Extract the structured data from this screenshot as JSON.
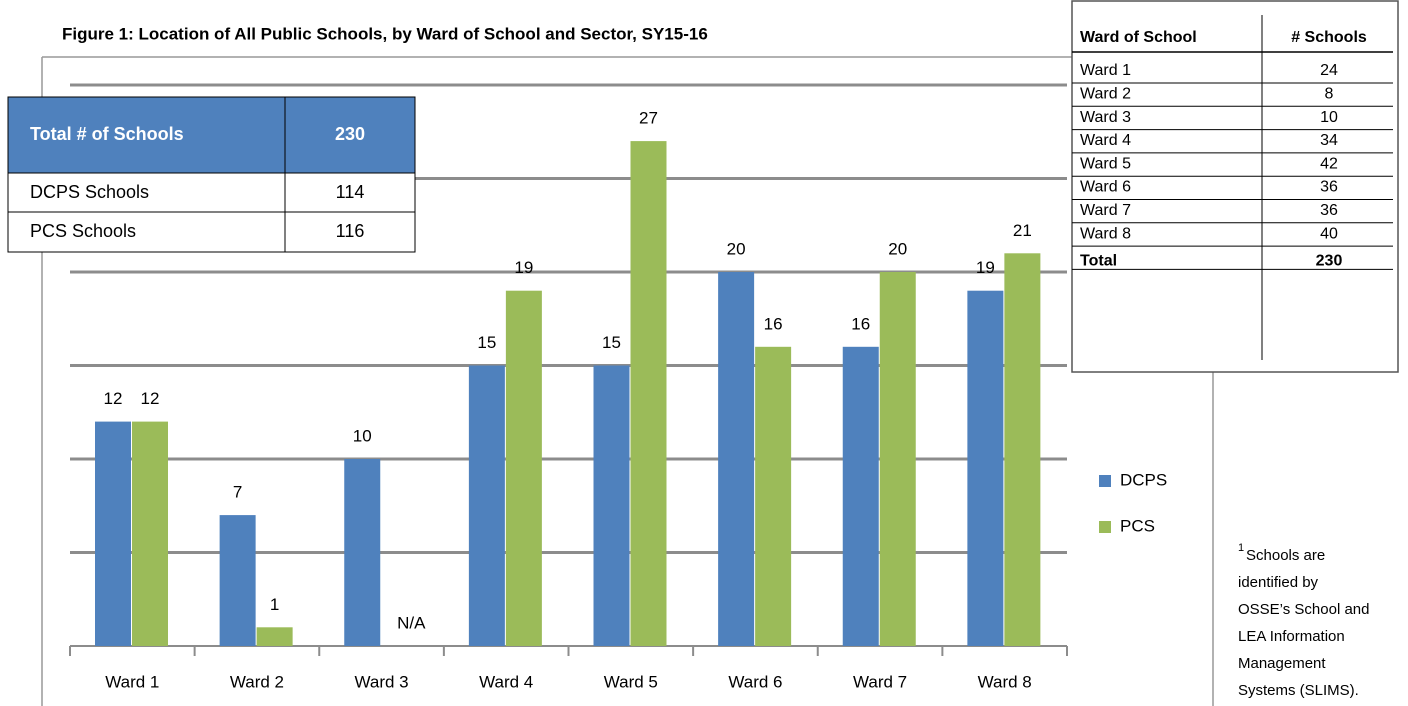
{
  "chart_data": {
    "type": "bar",
    "title": "Figure 1: Location of All Public Schools, by Ward of School and Sector, SY15-16",
    "categories": [
      "Ward 1",
      "Ward 2",
      "Ward 3",
      "Ward 4",
      "Ward 5",
      "Ward 6",
      "Ward 7",
      "Ward 8"
    ],
    "series": [
      {
        "name": "DCPS",
        "color": "#4f81bd",
        "values": [
          12,
          7,
          10,
          15,
          15,
          20,
          16,
          19
        ]
      },
      {
        "name": "PCS",
        "color": "#9bbb59",
        "values": [
          12,
          1,
          null,
          19,
          27,
          16,
          20,
          21
        ],
        "value_labels": [
          "12",
          "1",
          "N/A",
          "19",
          "27",
          "16",
          "20",
          "21"
        ]
      }
    ],
    "ylim": [
      0,
      30
    ],
    "yticks": [
      0,
      5,
      10,
      15,
      20,
      25,
      30
    ],
    "grid": true,
    "legend": "right"
  },
  "summary_table": {
    "header": [
      "Total # of Schools",
      "230"
    ],
    "rows": [
      [
        "DCPS Schools",
        "114"
      ],
      [
        "PCS Schools",
        "116"
      ]
    ]
  },
  "ward_table": {
    "header": [
      "Ward of School",
      "# Schools"
    ],
    "rows": [
      [
        "Ward 1",
        "24"
      ],
      [
        "Ward 2",
        "8"
      ],
      [
        "Ward 3",
        "10"
      ],
      [
        "Ward 4",
        "34"
      ],
      [
        "Ward 5",
        "42"
      ],
      [
        "Ward 6",
        "36"
      ],
      [
        "Ward 7",
        "36"
      ],
      [
        "Ward 8",
        "40"
      ],
      [
        "Total",
        "230"
      ]
    ]
  },
  "footnote": {
    "marker": "1",
    "lines": [
      "Schools are",
      "identified by",
      "OSSE’s School and",
      "LEA Information",
      "Management",
      "Systems (SLIMS)."
    ]
  }
}
